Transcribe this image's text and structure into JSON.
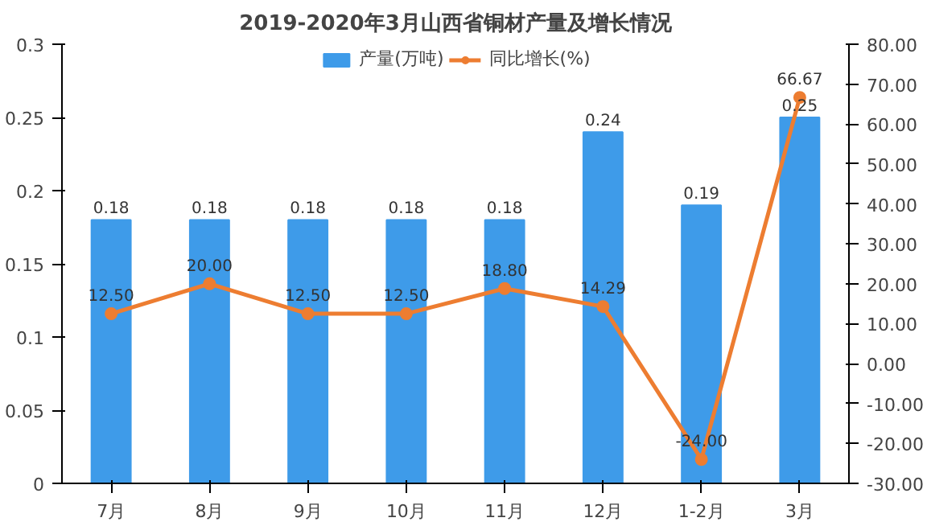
{
  "chart_data": {
    "type": "bar",
    "title": "2019-2020年3月山西省铜材产量及增长情况",
    "categories": [
      "7月",
      "8月",
      "9月",
      "10月",
      "11月",
      "12月",
      "1-2月",
      "3月"
    ],
    "series": [
      {
        "name": "产量(万吨)",
        "color": "#3e9be9",
        "values": [
          0.18,
          0.18,
          0.18,
          0.18,
          0.18,
          0.24,
          0.19,
          0.25
        ],
        "value_labels": [
          "0.18",
          "0.18",
          "0.18",
          "0.18",
          "0.18",
          "0.24",
          "0.19",
          "0.25"
        ]
      },
      {
        "name": "同比增长(%)",
        "type": "line",
        "axis": "y2",
        "color": "#ed7d31",
        "values": [
          12.5,
          20.0,
          12.5,
          12.5,
          18.8,
          14.29,
          -24.0,
          66.67
        ],
        "value_labels": [
          "12.50",
          "20.00",
          "12.50",
          "12.50",
          "18.80",
          "14.29",
          "-24.00",
          "66.67"
        ]
      }
    ],
    "ylim": [
      0,
      0.3
    ],
    "yticks": [
      0,
      0.05,
      {
        "value": 0.1,
        "label": "0.1"
      },
      0.15,
      {
        "value": 0.2,
        "label": "0.2"
      },
      0.25,
      {
        "value": 0.3,
        "label": "0.3"
      }
    ],
    "y2lim": [
      -30,
      80
    ],
    "y2ticks": [
      {
        "value": -30,
        "label": "-30.00"
      },
      {
        "value": -20,
        "label": "-20.00"
      },
      {
        "value": -10,
        "label": "-10.00"
      },
      {
        "value": 0,
        "label": "0.00"
      },
      {
        "value": 10,
        "label": "10.00"
      },
      {
        "value": 20,
        "label": "20.00"
      },
      {
        "value": 30,
        "label": "30.00"
      },
      {
        "value": 40,
        "label": "40.00"
      },
      {
        "value": 50,
        "label": "50.00"
      },
      {
        "value": 60,
        "label": "60.00"
      },
      {
        "value": 70,
        "label": "70.00"
      },
      {
        "value": 80,
        "label": "80.00"
      }
    ],
    "legend": "top",
    "marker": "circle",
    "grid": false
  }
}
